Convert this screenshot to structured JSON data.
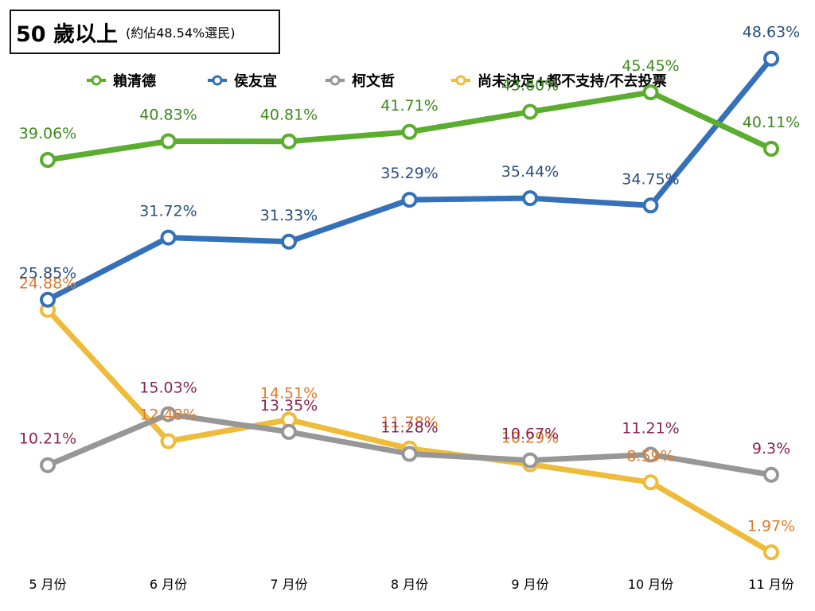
{
  "title": {
    "main": "50 歲以上",
    "sub": "(約佔48.54%選民)"
  },
  "chart_data": {
    "type": "line",
    "categories": [
      "5 月份",
      "6 月份",
      "7 月份",
      "8 月份",
      "9 月份",
      "10 月份",
      "11 月份"
    ],
    "ylim": [
      0,
      50
    ],
    "grid": false,
    "legend_position": "top",
    "series": [
      {
        "name": "賴清德",
        "line_color": "#5aad2e",
        "label_color": "#3d8a1e",
        "values": [
          39.06,
          40.83,
          40.81,
          41.71,
          43.6,
          45.45,
          40.11
        ],
        "labels": [
          "39.06%",
          "40.83%",
          "40.81%",
          "41.71%",
          "43.60%",
          "45.45%",
          "40.11%"
        ]
      },
      {
        "name": "侯友宜",
        "line_color": "#3571b8",
        "label_color": "#2a4f80",
        "values": [
          25.85,
          31.72,
          31.33,
          35.29,
          35.44,
          34.75,
          48.63
        ],
        "labels": [
          "25.85%",
          "31.72%",
          "31.33%",
          "35.29%",
          "35.44%",
          "34.75%",
          "48.63%"
        ]
      },
      {
        "name": "柯文哲",
        "line_color": "#979797",
        "label_color": "#8b2452",
        "values": [
          10.21,
          15.03,
          13.35,
          11.28,
          10.67,
          11.21,
          9.3
        ],
        "labels": [
          "10.21%",
          "15.03%",
          "13.35%",
          "11.28%",
          "10.67%",
          "11.21%",
          "9.3%"
        ]
      },
      {
        "name": "尚未決定+都不支持/不去投票",
        "line_color": "#eebc3a",
        "label_color": "#e07b2c",
        "values": [
          24.88,
          12.48,
          14.51,
          11.78,
          10.29,
          8.59,
          1.97
        ],
        "labels": [
          "24.88%",
          "12.48%",
          "14.51%",
          "11.78%",
          "10.29%",
          "8.59%",
          "1.97%"
        ]
      }
    ]
  }
}
